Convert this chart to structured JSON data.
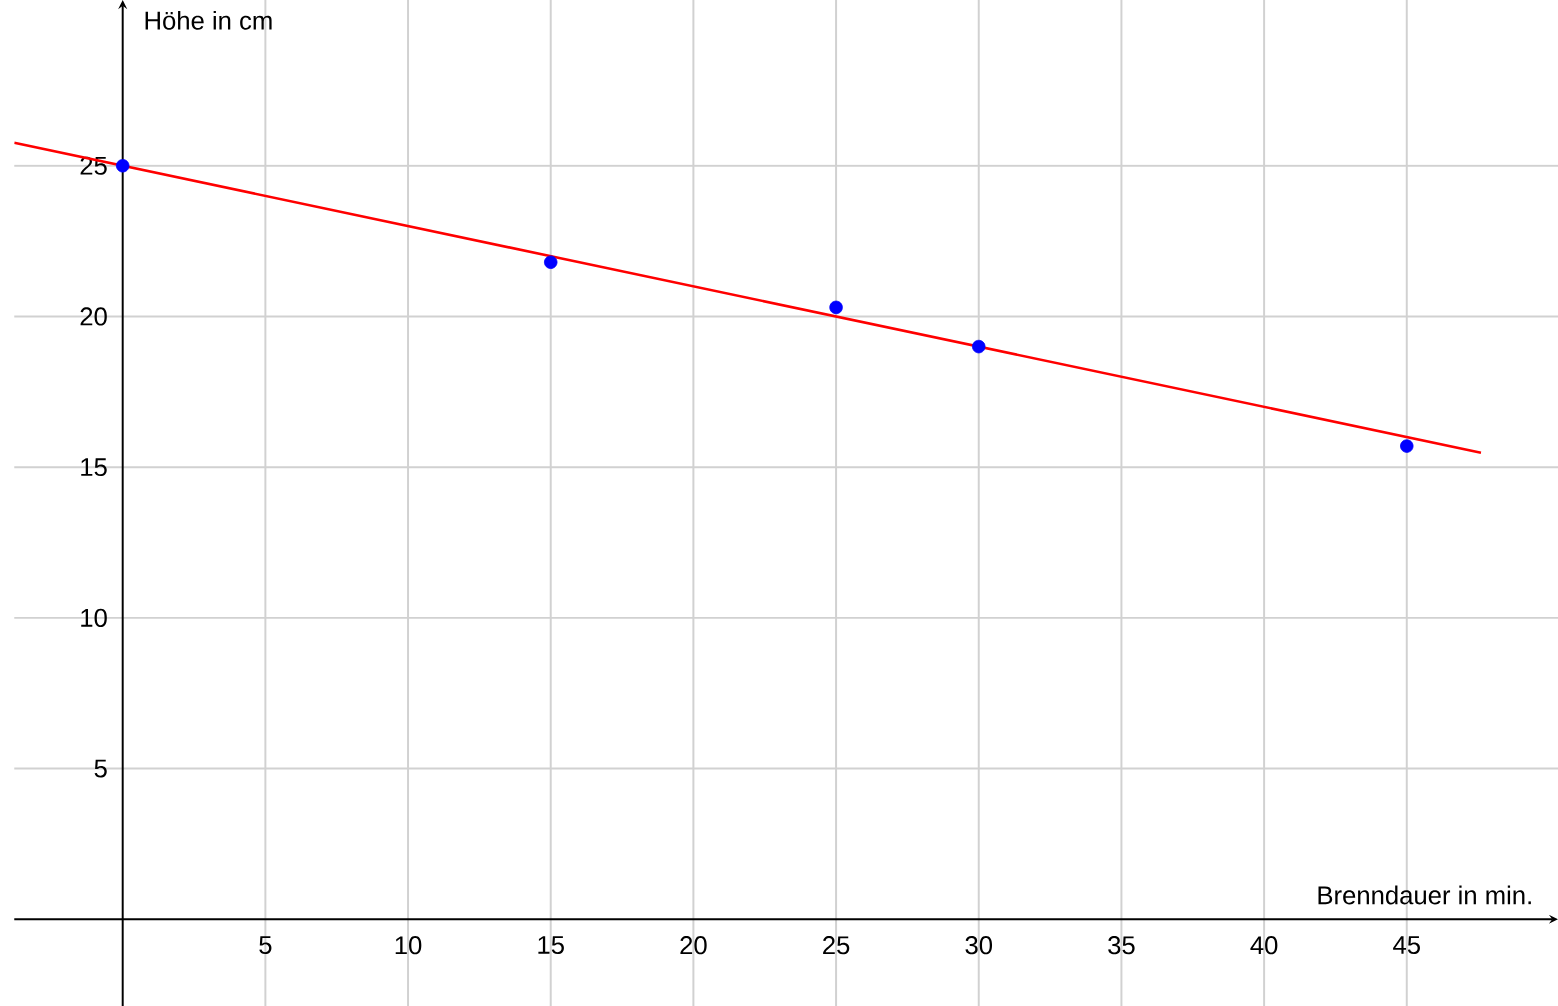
{
  "chart_data": {
    "type": "scatter",
    "xlabel": "Brenndauer in min.",
    "ylabel": "Höhe in cm",
    "xlim": [
      -3.8,
      50.3
    ],
    "ylim": [
      -2.9,
      30.5
    ],
    "xticks": [
      5,
      10,
      15,
      20,
      25,
      30,
      35,
      40,
      45
    ],
    "yticks": [
      5,
      10,
      15,
      20,
      25
    ],
    "grid": true,
    "series": [
      {
        "type": "line",
        "color": "#ff0000",
        "x": [
          -3.8,
          47.6
        ],
        "values": [
          25.76,
          15.48
        ],
        "marker": "none"
      },
      {
        "color": "#0000ff",
        "x": [
          0,
          15,
          25,
          30,
          45
        ],
        "values": [
          25,
          21.8,
          20.3,
          19,
          15.7
        ],
        "marker": "circle"
      }
    ]
  }
}
